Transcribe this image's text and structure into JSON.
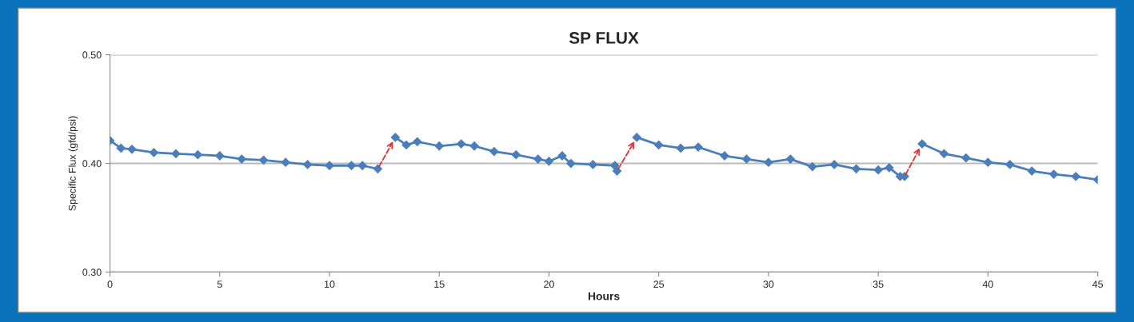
{
  "chart_data": {
    "type": "line",
    "title": "SP FLUX",
    "xlabel": "Hours",
    "ylabel": "Specific Flux (gfd/psi)",
    "x": [
      0,
      0.5,
      1,
      2,
      3,
      4,
      5,
      6,
      7,
      8,
      9,
      10,
      11,
      11.5,
      12.2,
      12.6,
      13,
      13.5,
      14,
      15,
      16,
      16.6,
      17.5,
      18.5,
      19.5,
      20,
      20.6,
      21,
      22,
      23,
      23.1,
      23.5,
      24,
      25,
      26,
      26.8,
      28,
      29,
      30,
      31,
      32,
      33,
      34,
      35,
      35.5,
      36,
      36.2,
      36.6,
      37,
      38,
      39,
      40,
      41,
      42,
      43,
      44,
      45
    ],
    "series": [
      {
        "color": "#4a7ebb",
        "values": [
          0.421,
          0.414,
          0.413,
          0.41,
          0.409,
          0.408,
          0.407,
          0.404,
          0.403,
          0.401,
          0.399,
          0.398,
          0.398,
          0.398,
          0.395,
          null,
          0.424,
          0.417,
          0.42,
          0.416,
          0.418,
          0.416,
          0.411,
          0.408,
          0.404,
          0.402,
          0.407,
          0.4,
          0.399,
          0.398,
          0.393,
          null,
          0.424,
          0.417,
          0.414,
          0.415,
          0.407,
          0.404,
          0.401,
          0.404,
          0.397,
          0.399,
          0.395,
          0.394,
          0.396,
          0.388,
          0.388,
          null,
          0.418,
          0.409,
          0.405,
          0.401,
          0.399,
          0.393,
          0.39,
          0.388,
          0.385
        ]
      }
    ],
    "xlim": [
      0,
      45
    ],
    "xticks": [
      0,
      5,
      10,
      15,
      20,
      25,
      30,
      35,
      40,
      45
    ],
    "ylim": [
      0.3,
      0.5
    ],
    "yticks": [
      {
        "value": 0.3,
        "label": "0.30"
      },
      {
        "value": 0.4,
        "label": "0.40"
      },
      {
        "value": 0.5,
        "label": "0.50"
      }
    ],
    "grid": "y",
    "marker": "diamond",
    "line_style": "solid"
  }
}
